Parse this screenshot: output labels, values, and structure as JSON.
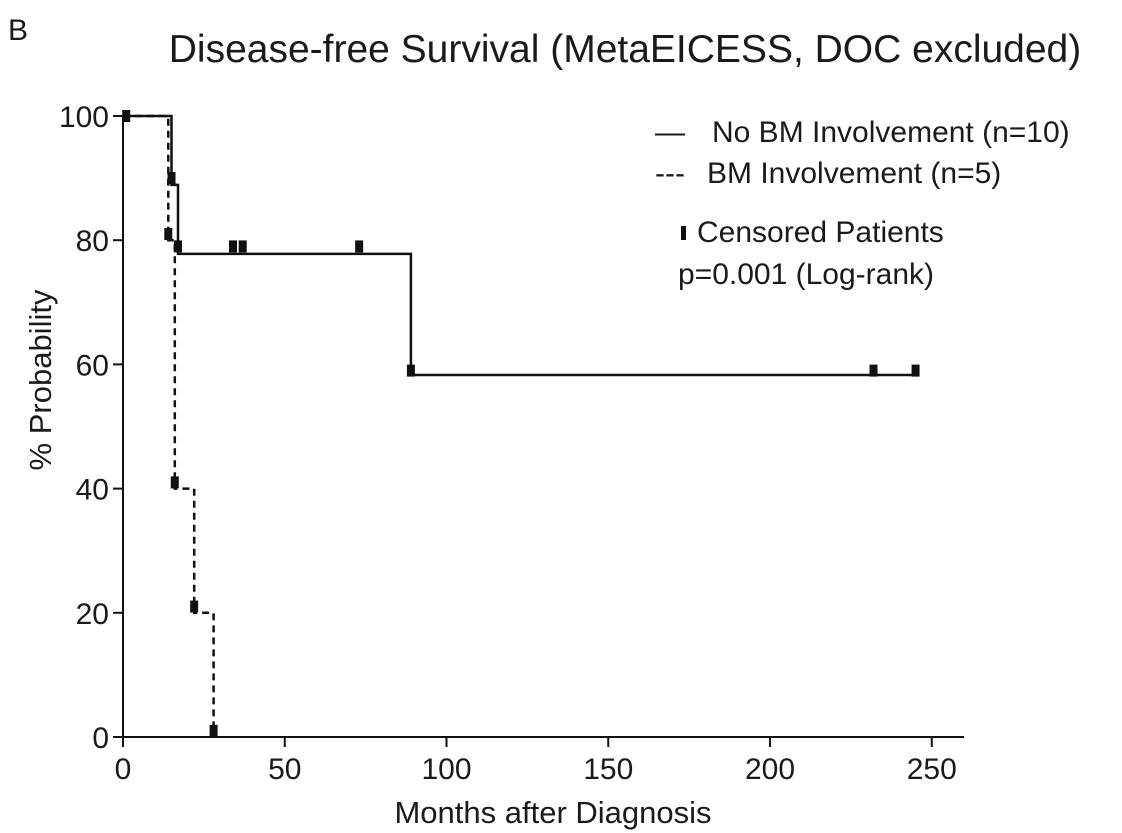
{
  "panel_label": "B",
  "chart_data": {
    "type": "line",
    "subtype": "kaplan-meier",
    "title": "Disease-free Survival (MetaEICESS, DOC excluded)",
    "xlabel": "Months after Diagnosis",
    "ylabel": "% Probability",
    "xlim": [
      0,
      260
    ],
    "ylim": [
      0,
      100
    ],
    "xticks": [
      0,
      50,
      100,
      150,
      200,
      250
    ],
    "yticks": [
      0,
      20,
      40,
      60,
      80,
      100
    ],
    "grid": false,
    "legend_position": "top-right",
    "series": [
      {
        "name": "No BM Involvement (n=10)",
        "legend_symbol": "—",
        "style": "solid",
        "steps": [
          [
            0,
            100
          ],
          [
            15,
            100
          ],
          [
            15,
            88.9
          ],
          [
            17,
            88.9
          ],
          [
            17,
            77.8
          ],
          [
            89,
            77.8
          ],
          [
            89,
            58.3
          ],
          [
            245,
            58.3
          ]
        ],
        "censored": [
          [
            1,
            100
          ],
          [
            15,
            90
          ],
          [
            17,
            79
          ],
          [
            34,
            79
          ],
          [
            37,
            79
          ],
          [
            73,
            79
          ],
          [
            89,
            59
          ],
          [
            232,
            59
          ],
          [
            245,
            59
          ]
        ]
      },
      {
        "name": "BM Involvement (n=5)",
        "legend_symbol": "---",
        "style": "dashed",
        "steps": [
          [
            0,
            100
          ],
          [
            14,
            100
          ],
          [
            14,
            80
          ],
          [
            16,
            80
          ],
          [
            16,
            40
          ],
          [
            22,
            40
          ],
          [
            22,
            20
          ],
          [
            28,
            20
          ],
          [
            28,
            0
          ]
        ],
        "censored": [
          [
            14,
            81
          ],
          [
            16,
            41
          ],
          [
            22,
            21
          ],
          [
            28,
            1
          ]
        ]
      }
    ],
    "annotations": {
      "censored_label": "Censored Patients",
      "p_value": "p=0.001 (Log-rank)"
    }
  }
}
